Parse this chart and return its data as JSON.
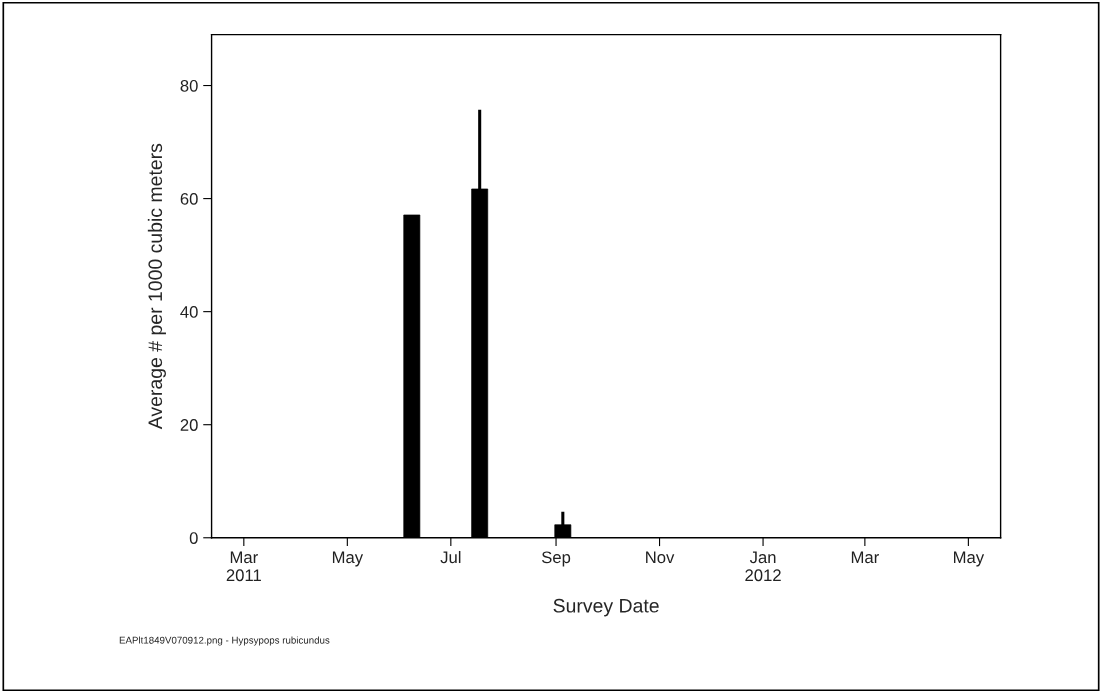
{
  "chart_data": {
    "type": "bar",
    "xlabel": "Survey Date",
    "ylabel": "Average # per 1000 cubic meters",
    "x": [
      "2011-06-08",
      "2011-07-18",
      "2011-09-05"
    ],
    "series": [
      {
        "color": "#000000",
        "values": [
          57.1,
          61.7,
          2.3
        ],
        "errors": [
          null,
          14,
          2.3
        ]
      }
    ],
    "xlim": [
      "2011-02-10",
      "2012-05-20"
    ],
    "xticks": [
      {
        "value": "2011-03-01",
        "label": "Mar\n2011"
      },
      {
        "value": "2011-05-01",
        "label": "May"
      },
      {
        "value": "2011-07-01",
        "label": "Jul"
      },
      {
        "value": "2011-09-01",
        "label": "Sep"
      },
      {
        "value": "2011-11-01",
        "label": "Nov"
      },
      {
        "value": "2012-01-01",
        "label": "Jan\n2012"
      },
      {
        "value": "2012-03-01",
        "label": "Mar"
      },
      {
        "value": "2012-05-01",
        "label": "May"
      }
    ],
    "ylim": [
      0,
      89
    ],
    "yticks": [
      0,
      20,
      40,
      60,
      80
    ],
    "grid": false,
    "legend": false,
    "annotations": [
      "EAPlt1849V070912.png - Hypsypops rubicundus"
    ]
  }
}
